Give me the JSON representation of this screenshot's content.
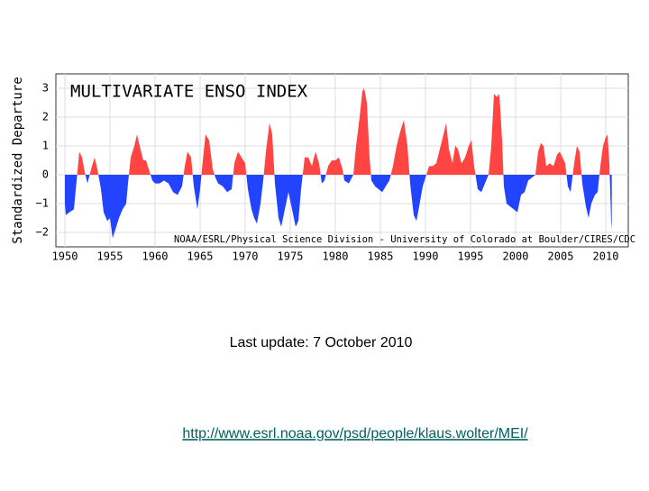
{
  "chart_data": {
    "type": "area",
    "title": "MULTIVARIATE ENSO INDEX",
    "y_label": "Standardized Departure",
    "annotation": "NOAA/ESRL/Physical Science Division - University of Colorado at Boulder/CIRES/CDC",
    "x": [
      1950.0,
      1950.1,
      1950.5,
      1951.0,
      1951.3,
      1951.6,
      1951.9,
      1952.2,
      1952.5,
      1953.0,
      1953.3,
      1953.6,
      1954.0,
      1954.3,
      1954.7,
      1955.0,
      1955.3,
      1955.7,
      1956.0,
      1956.4,
      1956.8,
      1957.0,
      1957.3,
      1957.7,
      1958.0,
      1958.3,
      1958.7,
      1959.0,
      1959.3,
      1959.7,
      1960.0,
      1960.5,
      1961.0,
      1961.5,
      1962.0,
      1962.5,
      1963.0,
      1963.3,
      1963.6,
      1964.0,
      1964.3,
      1964.7,
      1965.0,
      1965.3,
      1965.6,
      1966.0,
      1966.4,
      1966.7,
      1967.0,
      1967.5,
      1968.0,
      1968.5,
      1968.8,
      1969.2,
      1969.6,
      1970.0,
      1970.3,
      1970.7,
      1971.0,
      1971.3,
      1971.7,
      1972.0,
      1972.3,
      1972.7,
      1973.0,
      1973.3,
      1973.7,
      1974.0,
      1974.4,
      1974.8,
      1975.2,
      1975.6,
      1975.9,
      1976.2,
      1976.6,
      1977.0,
      1977.4,
      1977.8,
      1978.2,
      1978.5,
      1978.8,
      1979.2,
      1979.6,
      1980.0,
      1980.4,
      1980.8,
      1981.0,
      1981.5,
      1982.0,
      1982.3,
      1982.7,
      1983.0,
      1983.2,
      1983.5,
      1983.8,
      1984.0,
      1984.4,
      1984.8,
      1985.2,
      1985.6,
      1986.0,
      1986.4,
      1986.8,
      1987.2,
      1987.6,
      1988.0,
      1988.3,
      1988.7,
      1989.0,
      1989.3,
      1989.7,
      1990.0,
      1990.4,
      1990.8,
      1991.2,
      1991.6,
      1992.0,
      1992.3,
      1992.6,
      1993.0,
      1993.3,
      1993.6,
      1994.0,
      1994.4,
      1994.8,
      1995.1,
      1995.4,
      1995.8,
      1996.2,
      1996.6,
      1997.0,
      1997.3,
      1997.6,
      1997.9,
      1998.2,
      1998.5,
      1998.7,
      1999.0,
      1999.4,
      1999.8,
      2000.2,
      2000.6,
      2001.0,
      2001.4,
      2001.8,
      2002.2,
      2002.5,
      2002.8,
      2003.1,
      2003.4,
      2003.8,
      2004.2,
      2004.6,
      2004.9,
      2005.2,
      2005.5,
      2005.8,
      2006.1,
      2006.5,
      2006.8,
      2007.1,
      2007.4,
      2007.8,
      2008.1,
      2008.4,
      2008.8,
      2009.1,
      2009.4,
      2009.7,
      2010.0,
      2010.2,
      2010.4,
      2010.6,
      2010.67
    ],
    "values": [
      -1.0,
      -1.4,
      -1.3,
      -1.2,
      -0.2,
      0.8,
      0.6,
      0.1,
      -0.3,
      0.3,
      0.6,
      0.2,
      -0.5,
      -1.3,
      -1.6,
      -1.5,
      -2.2,
      -1.8,
      -1.5,
      -1.2,
      -1.0,
      -0.3,
      0.6,
      1.0,
      1.4,
      1.0,
      0.5,
      0.5,
      0.2,
      -0.2,
      -0.3,
      -0.3,
      -0.2,
      -0.3,
      -0.6,
      -0.7,
      -0.4,
      0.3,
      0.8,
      0.6,
      -0.4,
      -1.2,
      -0.5,
      0.5,
      1.4,
      1.2,
      0.2,
      -0.1,
      -0.3,
      -0.4,
      -0.6,
      -0.5,
      0.4,
      0.8,
      0.6,
      0.4,
      -0.5,
      -1.2,
      -1.5,
      -1.7,
      -1.0,
      -0.2,
      0.8,
      1.8,
      1.4,
      -0.3,
      -1.5,
      -1.8,
      -1.2,
      -0.6,
      -1.2,
      -1.8,
      -1.6,
      -0.5,
      0.6,
      0.6,
      0.3,
      0.8,
      0.4,
      -0.3,
      -0.2,
      0.3,
      0.5,
      0.5,
      0.6,
      0.2,
      -0.2,
      -0.3,
      0.0,
      1.0,
      2.0,
      2.9,
      3.0,
      2.5,
      0.6,
      -0.2,
      -0.4,
      -0.5,
      -0.6,
      -0.4,
      -0.2,
      0.3,
      1.0,
      1.5,
      1.9,
      1.0,
      -0.3,
      -1.4,
      -1.6,
      -1.1,
      -0.4,
      -0.1,
      0.3,
      0.3,
      0.4,
      0.9,
      1.4,
      1.8,
      0.9,
      0.4,
      1.0,
      0.9,
      0.4,
      0.6,
      1.0,
      1.2,
      0.3,
      -0.5,
      -0.6,
      -0.3,
      0.0,
      1.0,
      2.8,
      2.7,
      2.8,
      1.2,
      -0.4,
      -1.0,
      -1.1,
      -1.2,
      -1.3,
      -0.7,
      -0.6,
      -0.2,
      -0.1,
      0.0,
      0.8,
      1.1,
      1.0,
      0.3,
      0.4,
      0.3,
      0.7,
      0.8,
      0.6,
      0.4,
      -0.4,
      -0.6,
      0.4,
      1.0,
      0.8,
      -0.3,
      -1.1,
      -1.5,
      -1.0,
      -0.7,
      -0.6,
      0.3,
      1.0,
      1.3,
      1.4,
      0.4,
      -1.6,
      -1.9
    ],
    "xlim": [
      1949.0,
      2012.5
    ],
    "ylim": [
      -2.5,
      3.5
    ],
    "xticks": [
      1950,
      1955,
      1960,
      1965,
      1970,
      1975,
      1980,
      1985,
      1990,
      1995,
      2000,
      2005,
      2010
    ],
    "yticks": [
      {
        "value": -2,
        "label": "−2"
      },
      {
        "value": -1,
        "label": "−1"
      },
      0,
      1,
      2,
      3
    ],
    "grid": true,
    "positive_color": "#ff4444",
    "negative_color": "#2244ff"
  },
  "footer": {
    "update": "Last update: 7 October 2010",
    "url": "http://www.esrl.noaa.gov/psd/people/klaus.wolter/MEI/"
  }
}
